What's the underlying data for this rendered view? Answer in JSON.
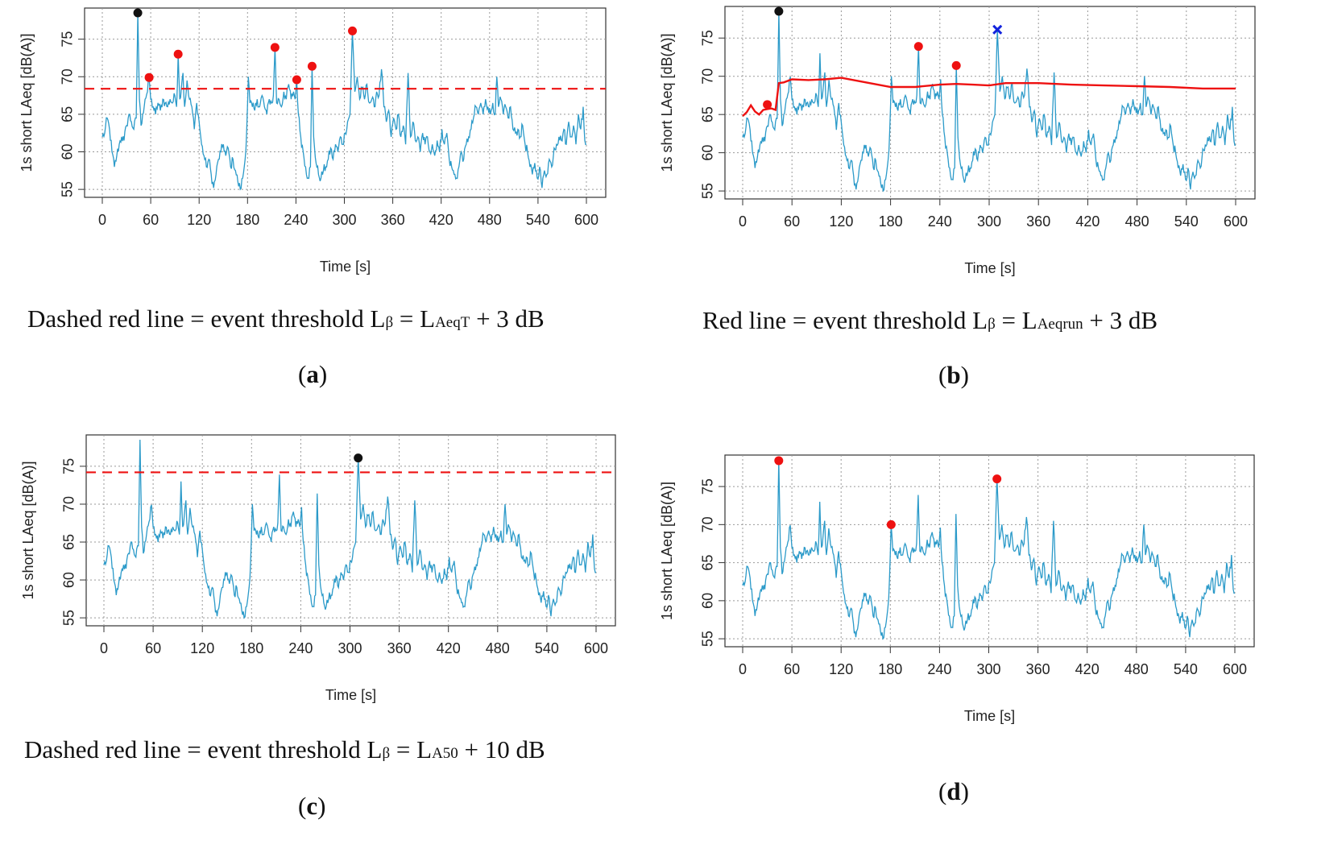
{
  "chart_data": [
    {
      "id": "a",
      "type": "line",
      "xlabel": "Time [s]",
      "ylabel": "1s short LAeq [dB(A)]",
      "xlim": [
        0,
        600
      ],
      "ylim": [
        54.8,
        78.5
      ],
      "xticks": [
        "0",
        "60",
        "120",
        "180",
        "240",
        "300",
        "360",
        "420",
        "480",
        "540",
        "600"
      ],
      "yticks": [
        "55",
        "60",
        "65",
        "70",
        "75"
      ],
      "series": [
        {
          "name": "1s short LAeq",
          "color": "#2b9ac9"
        }
      ],
      "threshold": {
        "style": "dashed",
        "value": 68.4,
        "color": "#ee1111"
      },
      "markers": [
        {
          "x": 44,
          "y": 78.5,
          "kind": "dot",
          "color": "#111111"
        },
        {
          "x": 58,
          "y": 69.9,
          "kind": "dot",
          "color": "#ee1111"
        },
        {
          "x": 94,
          "y": 73.0,
          "kind": "dot",
          "color": "#ee1111"
        },
        {
          "x": 214,
          "y": 73.9,
          "kind": "dot",
          "color": "#ee1111"
        },
        {
          "x": 241,
          "y": 69.6,
          "kind": "dot",
          "color": "#ee1111"
        },
        {
          "x": 260,
          "y": 71.4,
          "kind": "dot",
          "color": "#ee1111"
        },
        {
          "x": 310,
          "y": 76.1,
          "kind": "dot",
          "color": "#ee1111"
        }
      ],
      "caption": {
        "pre": "Dashed red line = event threshold L",
        "beta": "β",
        "mid": " = L",
        "sub": "AeqT",
        "post": " + 3 dB"
      },
      "label": {
        "open": "(",
        "letter": "a",
        "close": ")"
      }
    },
    {
      "id": "b",
      "type": "line",
      "xlabel": "Time [s]",
      "ylabel": "1s short LAeq [dB(A)]",
      "xlim": [
        0,
        600
      ],
      "ylim": [
        54.8,
        78.5
      ],
      "xticks": [
        "0",
        "60",
        "120",
        "180",
        "240",
        "300",
        "360",
        "420",
        "480",
        "540",
        "600"
      ],
      "yticks": [
        "55",
        "60",
        "65",
        "70",
        "75"
      ],
      "series": [
        {
          "name": "1s short LAeq",
          "color": "#2b9ac9"
        }
      ],
      "running_threshold": {
        "color": "#ee1111",
        "x": [
          0,
          5,
          10,
          15,
          20,
          25,
          30,
          35,
          40,
          44,
          50,
          60,
          80,
          100,
          120,
          150,
          180,
          210,
          240,
          260,
          280,
          300,
          320,
          360,
          400,
          440,
          480,
          520,
          560,
          600
        ],
        "y": [
          64.8,
          65.3,
          66.2,
          65.4,
          65.0,
          65.6,
          65.7,
          65.8,
          65.6,
          69.1,
          69.2,
          69.6,
          69.5,
          69.6,
          69.8,
          69.2,
          68.6,
          68.6,
          68.9,
          69.0,
          68.9,
          68.8,
          69.1,
          69.1,
          68.9,
          68.8,
          68.7,
          68.6,
          68.4,
          68.4
        ]
      },
      "markers": [
        {
          "x": 44,
          "y": 78.5,
          "kind": "dot",
          "color": "#111111"
        },
        {
          "x": 30,
          "y": 66.3,
          "kind": "dot",
          "color": "#ee1111"
        },
        {
          "x": 214,
          "y": 73.9,
          "kind": "dot",
          "color": "#ee1111"
        },
        {
          "x": 260,
          "y": 71.4,
          "kind": "dot",
          "color": "#ee1111"
        },
        {
          "x": 310,
          "y": 76.1,
          "kind": "cross",
          "color": "#1122dd"
        }
      ],
      "caption": {
        "pre": "Red line = event threshold L",
        "beta": "β",
        "mid": " = L",
        "sub": "Aeqrun",
        "post": " + 3 dB"
      },
      "label": {
        "open": "(",
        "letter": "b",
        "close": ")"
      }
    },
    {
      "id": "c",
      "type": "line",
      "xlabel": "Time [s]",
      "ylabel": "1s short LAeq [dB(A)]",
      "xlim": [
        0,
        600
      ],
      "ylim": [
        54.8,
        78.5
      ],
      "xticks": [
        "0",
        "60",
        "120",
        "180",
        "240",
        "300",
        "360",
        "420",
        "480",
        "540",
        "600"
      ],
      "yticks": [
        "55",
        "60",
        "65",
        "70",
        "75"
      ],
      "series": [
        {
          "name": "1s short LAeq",
          "color": "#2b9ac9"
        }
      ],
      "threshold": {
        "style": "dashed",
        "value": 74.2,
        "color": "#ee1111"
      },
      "markers": [
        {
          "x": 310,
          "y": 76.1,
          "kind": "dot",
          "color": "#111111"
        }
      ],
      "caption": {
        "pre": "Dashed red line = event threshold L",
        "beta": "β",
        "mid": " = L",
        "sub": "A50",
        "post": " + 10 dB"
      },
      "label": {
        "open": "(",
        "letter": "c",
        "close": ")"
      }
    },
    {
      "id": "d",
      "type": "line",
      "xlabel": "Time [s]",
      "ylabel": "1s short LAeq [dB(A)]",
      "xlim": [
        0,
        600
      ],
      "ylim": [
        54.8,
        78.5
      ],
      "xticks": [
        "0",
        "60",
        "120",
        "180",
        "240",
        "300",
        "360",
        "420",
        "480",
        "540",
        "600"
      ],
      "yticks": [
        "55",
        "60",
        "65",
        "70",
        "75"
      ],
      "series": [
        {
          "name": "1s short LAeq",
          "color": "#2b9ac9"
        }
      ],
      "markers": [
        {
          "x": 44,
          "y": 78.4,
          "kind": "dot",
          "color": "#ee1111"
        },
        {
          "x": 181,
          "y": 70.0,
          "kind": "dot",
          "color": "#ee1111"
        },
        {
          "x": 310,
          "y": 76.0,
          "kind": "dot",
          "color": "#ee1111"
        }
      ],
      "caption": null,
      "label": {
        "open": "(",
        "letter": "d",
        "close": ")"
      }
    }
  ],
  "signal": {
    "description_points": [
      [
        0,
        62
      ],
      [
        3,
        62.5
      ],
      [
        6,
        64.5
      ],
      [
        9,
        63
      ],
      [
        12,
        60
      ],
      [
        15,
        58
      ],
      [
        18,
        59.5
      ],
      [
        21,
        61
      ],
      [
        24,
        62
      ],
      [
        27,
        61.5
      ],
      [
        30,
        63.5
      ],
      [
        33,
        65
      ],
      [
        36,
        64
      ],
      [
        39,
        63
      ],
      [
        42,
        64.5
      ],
      [
        44,
        78.5
      ],
      [
        46,
        67
      ],
      [
        48,
        63.5
      ],
      [
        50,
        65
      ],
      [
        53,
        67
      ],
      [
        56,
        68
      ],
      [
        58,
        69.9
      ],
      [
        60,
        67
      ],
      [
        63,
        66
      ],
      [
        66,
        65
      ],
      [
        69,
        66.5
      ],
      [
        72,
        65.5
      ],
      [
        75,
        67
      ],
      [
        78,
        66.5
      ],
      [
        81,
        66
      ],
      [
        84,
        67
      ],
      [
        87,
        66.5
      ],
      [
        90,
        67.5
      ],
      [
        92,
        66
      ],
      [
        94,
        73
      ],
      [
        96,
        67
      ],
      [
        98,
        68.5
      ],
      [
        100,
        70.5
      ],
      [
        102,
        66
      ],
      [
        105,
        69.5
      ],
      [
        108,
        67
      ],
      [
        111,
        66
      ],
      [
        114,
        63
      ],
      [
        117,
        66.5
      ],
      [
        120,
        64
      ],
      [
        123,
        61
      ],
      [
        126,
        59.5
      ],
      [
        129,
        58
      ],
      [
        132,
        59
      ],
      [
        135,
        57
      ],
      [
        138,
        55.2
      ],
      [
        141,
        57
      ],
      [
        144,
        59
      ],
      [
        147,
        60
      ],
      [
        150,
        61
      ],
      [
        153,
        59.5
      ],
      [
        156,
        60.5
      ],
      [
        159,
        58
      ],
      [
        162,
        59
      ],
      [
        165,
        57.5
      ],
      [
        168,
        56
      ],
      [
        171,
        55
      ],
      [
        174,
        56.5
      ],
      [
        177,
        59
      ],
      [
        179,
        63
      ],
      [
        181,
        70
      ],
      [
        183,
        66.5
      ],
      [
        186,
        66
      ],
      [
        189,
        65.5
      ],
      [
        192,
        67
      ],
      [
        195,
        66
      ],
      [
        198,
        67.5
      ],
      [
        201,
        66
      ],
      [
        204,
        65
      ],
      [
        207,
        67
      ],
      [
        210,
        66.5
      ],
      [
        212,
        67.5
      ],
      [
        214,
        73.9
      ],
      [
        216,
        66.5
      ],
      [
        219,
        67
      ],
      [
        222,
        66
      ],
      [
        225,
        68
      ],
      [
        228,
        67
      ],
      [
        231,
        69
      ],
      [
        234,
        67
      ],
      [
        237,
        68
      ],
      [
        239,
        67
      ],
      [
        241,
        69.6
      ],
      [
        243,
        65
      ],
      [
        246,
        62
      ],
      [
        249,
        60
      ],
      [
        252,
        58
      ],
      [
        255,
        56.5
      ],
      [
        258,
        58
      ],
      [
        260,
        71.4
      ],
      [
        262,
        62
      ],
      [
        265,
        58.5
      ],
      [
        268,
        57
      ],
      [
        271,
        56.5
      ],
      [
        274,
        57.5
      ],
      [
        277,
        58
      ],
      [
        280,
        59
      ],
      [
        283,
        60.5
      ],
      [
        286,
        59
      ],
      [
        289,
        61
      ],
      [
        292,
        60
      ],
      [
        295,
        62
      ],
      [
        298,
        61
      ],
      [
        301,
        62.5
      ],
      [
        304,
        64
      ],
      [
        307,
        65
      ],
      [
        310,
        76.1
      ],
      [
        313,
        68
      ],
      [
        316,
        70
      ],
      [
        319,
        67
      ],
      [
        322,
        68.5
      ],
      [
        325,
        67
      ],
      [
        328,
        69
      ],
      [
        331,
        66.5
      ],
      [
        334,
        67
      ],
      [
        337,
        66
      ],
      [
        340,
        68
      ],
      [
        343,
        67.5
      ],
      [
        346,
        71
      ],
      [
        349,
        66
      ],
      [
        352,
        64
      ],
      [
        355,
        65.5
      ],
      [
        358,
        62
      ],
      [
        361,
        64.5
      ],
      [
        364,
        63
      ],
      [
        367,
        65
      ],
      [
        370,
        62
      ],
      [
        373,
        63.5
      ],
      [
        376,
        61
      ],
      [
        379,
        70.5
      ],
      [
        382,
        62
      ],
      [
        385,
        64
      ],
      [
        388,
        61.5
      ],
      [
        391,
        62
      ],
      [
        394,
        60
      ],
      [
        397,
        62.5
      ],
      [
        400,
        61
      ],
      [
        403,
        62
      ],
      [
        406,
        60
      ],
      [
        409,
        61
      ],
      [
        412,
        59.5
      ],
      [
        415,
        61.5
      ],
      [
        418,
        60
      ],
      [
        421,
        63
      ],
      [
        424,
        61
      ],
      [
        427,
        62.5
      ],
      [
        430,
        59
      ],
      [
        433,
        58
      ],
      [
        436,
        57
      ],
      [
        439,
        56.5
      ],
      [
        442,
        58
      ],
      [
        445,
        60
      ],
      [
        448,
        59
      ],
      [
        451,
        61
      ],
      [
        454,
        62
      ],
      [
        457,
        63
      ],
      [
        460,
        64.5
      ],
      [
        463,
        66
      ],
      [
        466,
        65
      ],
      [
        469,
        66.5
      ],
      [
        472,
        65
      ],
      [
        475,
        67
      ],
      [
        478,
        66
      ],
      [
        481,
        65
      ],
      [
        484,
        66.5
      ],
      [
        487,
        65
      ],
      [
        489,
        70
      ],
      [
        491,
        66
      ],
      [
        494,
        67
      ],
      [
        497,
        65
      ],
      [
        500,
        66
      ],
      [
        503,
        64.5
      ],
      [
        506,
        66
      ],
      [
        509,
        63
      ],
      [
        512,
        62.5
      ],
      [
        515,
        63
      ],
      [
        518,
        62
      ],
      [
        521,
        63.5
      ],
      [
        524,
        61
      ],
      [
        527,
        60
      ],
      [
        530,
        58
      ],
      [
        533,
        57
      ],
      [
        536,
        58.5
      ],
      [
        539,
        56.5
      ],
      [
        542,
        58
      ],
      [
        545,
        55.2
      ],
      [
        548,
        57.5
      ],
      [
        551,
        57
      ],
      [
        554,
        59
      ],
      [
        557,
        58
      ],
      [
        560,
        60.5
      ],
      [
        563,
        61
      ],
      [
        566,
        62
      ],
      [
        569,
        61.5
      ],
      [
        572,
        63
      ],
      [
        575,
        61
      ],
      [
        578,
        64
      ],
      [
        581,
        62
      ],
      [
        584,
        63.5
      ],
      [
        587,
        61
      ],
      [
        590,
        65
      ],
      [
        593,
        63
      ],
      [
        596,
        66
      ],
      [
        598,
        61.5
      ],
      [
        600,
        61
      ]
    ]
  }
}
